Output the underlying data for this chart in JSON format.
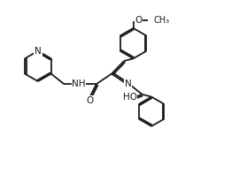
{
  "background_color": "#ffffff",
  "line_color": "#1a1a1a",
  "line_width": 1.3,
  "font_size": 7.5,
  "figsize": [
    2.79,
    1.97
  ],
  "dpi": 100,
  "xlim": [
    0,
    10
  ],
  "ylim": [
    0,
    7
  ]
}
